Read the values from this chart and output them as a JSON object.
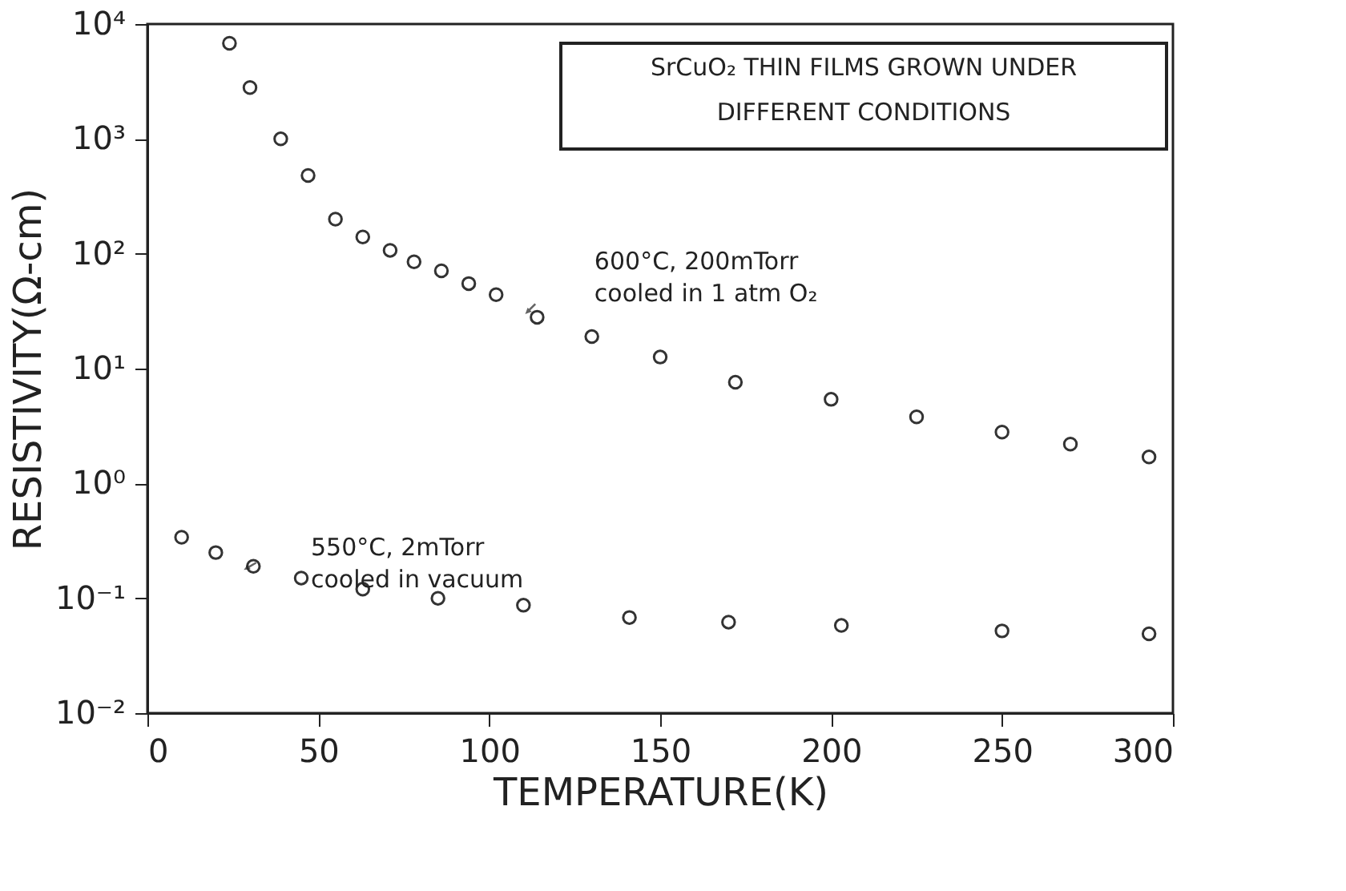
{
  "chart_data": {
    "type": "scatter",
    "xlabel": "TEMPERATURE(K)",
    "ylabel": "RESISTIVITY(Ω-cm)",
    "log": "y",
    "grid": false,
    "marker": "circle",
    "xlim": [
      0,
      300
    ],
    "xticks": [
      0,
      50,
      100,
      150,
      200,
      250,
      300
    ],
    "ylim": [
      0.01,
      10000
    ],
    "yticks": [
      {
        "value": 0.01,
        "label": "10⁻²"
      },
      {
        "value": 0.1,
        "label": "10⁻¹"
      },
      {
        "value": 1,
        "label": "10⁰"
      },
      {
        "value": 10,
        "label": "10¹"
      },
      {
        "value": 100,
        "label": "10²"
      },
      {
        "value": 1000,
        "label": "10³"
      },
      {
        "value": 10000,
        "label": "10⁴"
      }
    ],
    "series": [
      {
        "color": "#333333",
        "x": [
          24,
          30,
          39,
          47,
          55,
          63,
          71,
          78,
          86,
          94,
          102,
          114,
          130,
          150,
          172,
          200,
          225,
          250,
          270,
          293
        ],
        "values": [
          6800,
          2800,
          1000,
          480,
          200,
          140,
          107,
          85,
          71,
          55,
          44,
          28,
          19,
          12.6,
          7.6,
          5.4,
          3.8,
          2.8,
          2.2,
          1.7
        ]
      },
      {
        "color": "#333333",
        "x": [
          10,
          20,
          31,
          45,
          63,
          85,
          110,
          141,
          170,
          203,
          250,
          293
        ],
        "values": [
          0.34,
          0.25,
          0.19,
          0.15,
          0.12,
          0.1,
          0.087,
          0.068,
          0.062,
          0.058,
          0.052,
          0.049
        ]
      }
    ],
    "annotations": [
      "SrCuO₂ THIN FILMS GROWN UNDER\nDIFFERENT CONDITIONS",
      {
        "text": "600°C, 200mTorr\ncooled in 1 atm O₂",
        "x": 112,
        "y": 33
      },
      {
        "text": "550°C, 2mTorr\ncooled in vacuum",
        "x": 30,
        "y": 0.19
      }
    ]
  }
}
